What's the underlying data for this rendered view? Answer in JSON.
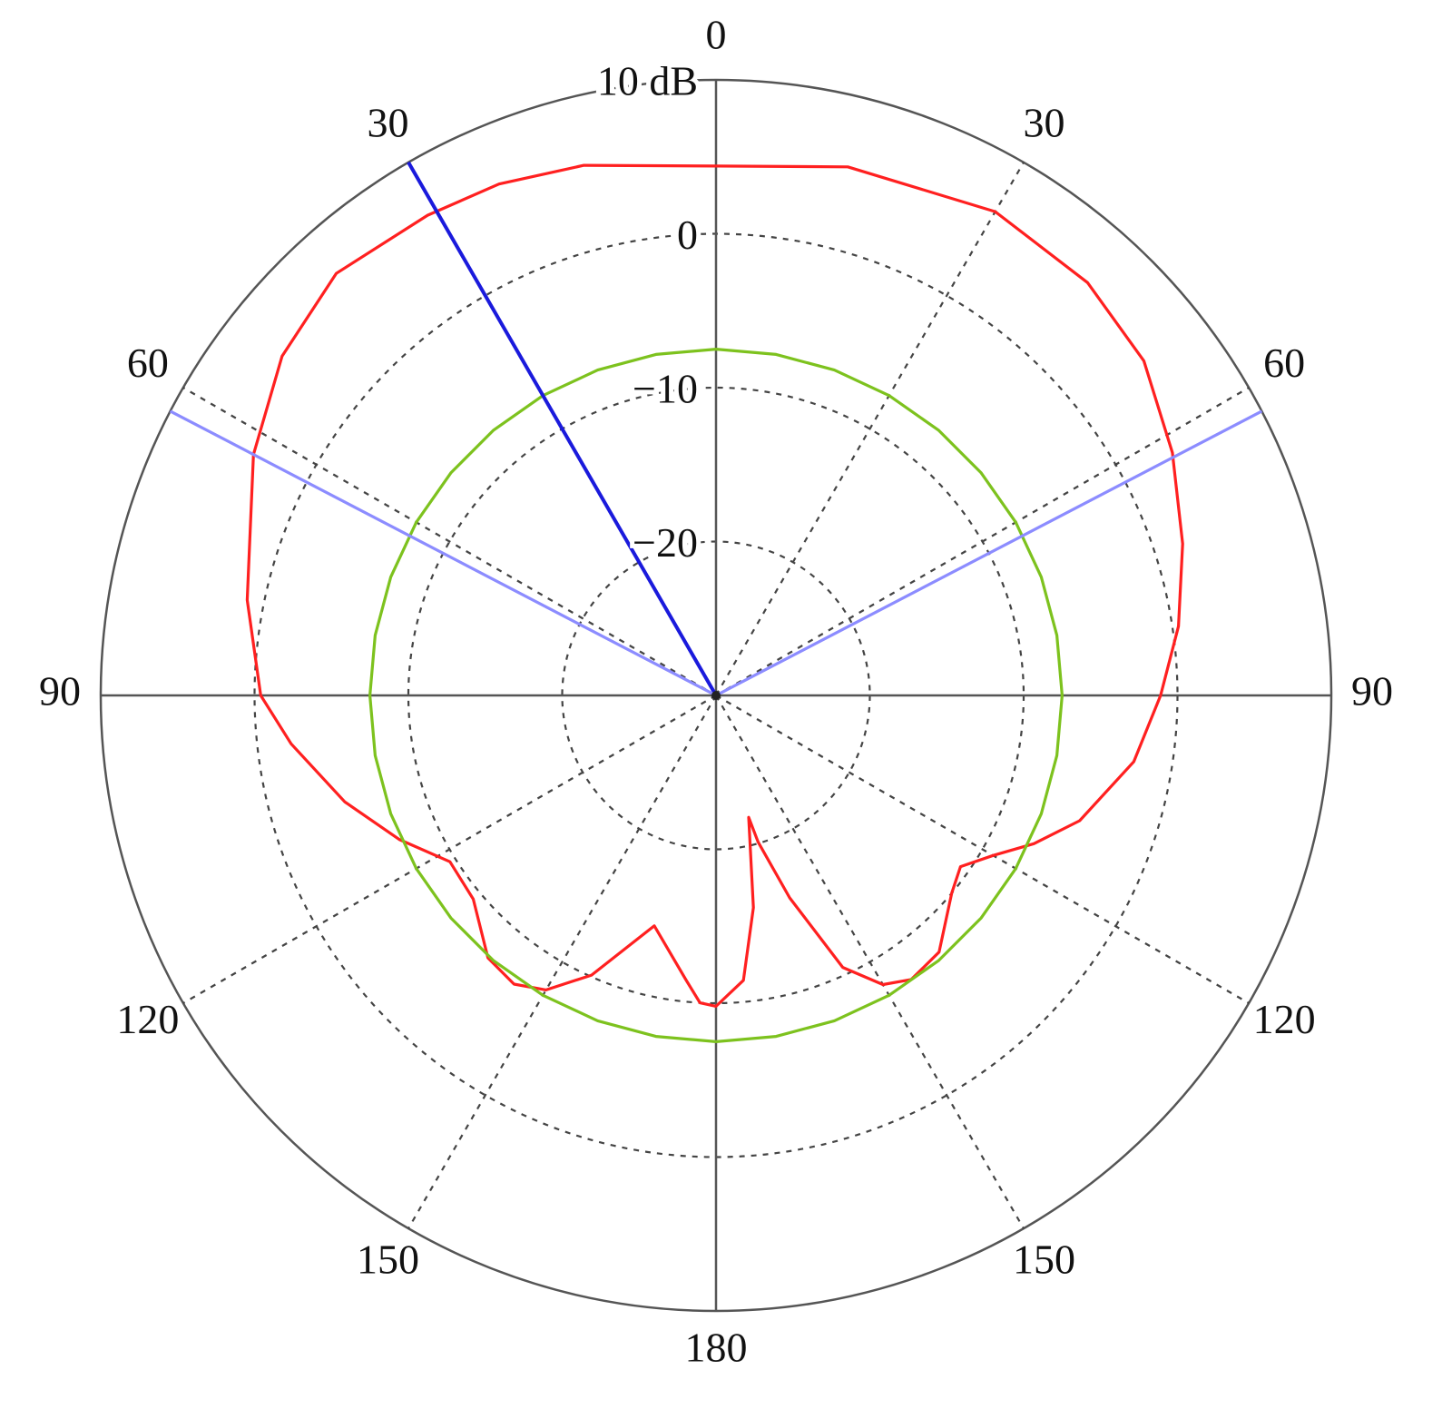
{
  "chart_data": {
    "type": "polar",
    "direction": "clockwise",
    "zero_location": "top",
    "rlim": [
      -30,
      10
    ],
    "rticks": [
      {
        "value": -20,
        "label": "−20"
      },
      {
        "value": -10,
        "label": "−10"
      },
      0,
      {
        "value": 10,
        "label": "10 dB"
      }
    ],
    "thetaticks": [
      0,
      30,
      60,
      90,
      120,
      150,
      180,
      {
        "value": -150,
        "label": "150"
      },
      {
        "value": -120,
        "label": "120"
      },
      {
        "value": -90,
        "label": "90"
      },
      {
        "value": -60,
        "label": "60"
      },
      {
        "value": -30,
        "label": "30"
      }
    ],
    "grid": true,
    "series": [
      {
        "color": "#ff2020",
        "theta": [
          0,
          14,
          30,
          42,
          52,
          62,
          72,
          81.5,
          90,
          99,
          109,
          115,
          120,
          125,
          130,
          139,
          145.5,
          150,
          155,
          160,
          164,
          165,
          170,
          174.5,
          180,
          -177,
          -174,
          -165,
          -156,
          -150,
          -145,
          -139,
          -130,
          -122,
          -114.5,
          -106,
          -96.5,
          -90,
          -78.5,
          -62.5,
          -52,
          -42,
          -31,
          -23,
          -14
        ],
        "r": [
          4.4,
          5.4,
          6.3,
          6.1,
          5.3,
          3.6,
          1.9,
          0.4,
          -1.1,
          -2.5,
          -5.0,
          -7.2,
          -9.2,
          -10.6,
          -10.0,
          -7.9,
          -7.6,
          -8.3,
          -10.5,
          -16.0,
          -20.1,
          -21.8,
          -16.0,
          -11.4,
          -9.8,
          -10.0,
          -11.4,
          -14.5,
          -10.1,
          -7.9,
          -7.1,
          -7.4,
          -9.4,
          -9.6,
          -7.4,
          -4.9,
          -2.2,
          -0.4,
          1.1,
          3.9,
          5.8,
          6.9,
          6.4,
          6.1,
          5.5
        ]
      },
      {
        "color": "#7dc21e",
        "theta": [
          -180,
          -170,
          -160,
          -150,
          -140,
          -130,
          -120,
          -110,
          -100,
          -90,
          -80,
          -70,
          -60,
          -50,
          -40,
          -30,
          -20,
          -10,
          0,
          10,
          20,
          30,
          40,
          50,
          60,
          70,
          80,
          90,
          100,
          110,
          120,
          130,
          140,
          150,
          160,
          170,
          180
        ],
        "r": [
          -7.5,
          -7.5,
          -7.5,
          -7.5,
          -7.5,
          -7.5,
          -7.5,
          -7.5,
          -7.5,
          -7.5,
          -7.5,
          -7.5,
          -7.5,
          -7.5,
          -7.5,
          -7.5,
          -7.5,
          -7.5,
          -7.5,
          -7.5,
          -7.5,
          -7.5,
          -7.5,
          -7.5,
          -7.5,
          -7.5,
          -7.5,
          -7.5,
          -7.5,
          -7.5,
          -7.5,
          -7.5,
          -7.5,
          -7.5,
          -7.5,
          -7.5,
          -7.5
        ]
      },
      {
        "color": "#1a1adc",
        "theta": [
          -30,
          -30
        ],
        "r": [
          -30,
          10
        ]
      },
      {
        "color": "#8c8cff",
        "theta": [
          -62.5,
          -62.5
        ],
        "r": [
          -30,
          10
        ]
      },
      {
        "color": "#8c8cff",
        "theta": [
          62.5,
          62.5
        ],
        "r": [
          -30,
          10
        ]
      }
    ]
  }
}
